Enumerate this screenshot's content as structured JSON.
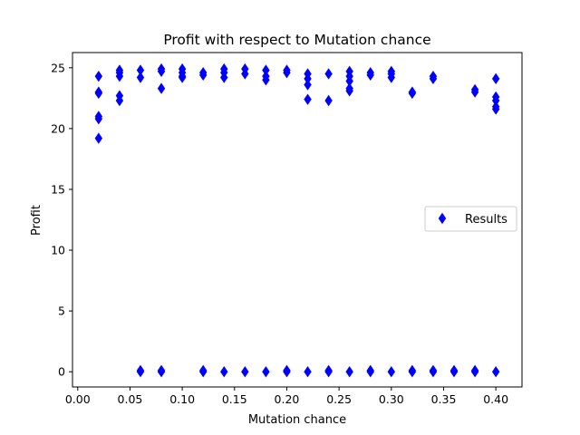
{
  "chart_data": {
    "type": "scatter",
    "title": "Profit with respect to Mutation chance",
    "xlabel": "Mutation chance",
    "ylabel": "Profit",
    "xlim": [
      -0.005,
      0.425
    ],
    "ylim": [
      -1.25,
      26.25
    ],
    "xticks": [
      "0.00",
      "0.05",
      "0.10",
      "0.15",
      "0.20",
      "0.25",
      "0.30",
      "0.35",
      "0.40"
    ],
    "yticks": [
      "0",
      "5",
      "10",
      "15",
      "20",
      "25"
    ],
    "grid": false,
    "legend_position": "center-right",
    "series": [
      {
        "name": "Results",
        "marker": "thin_diamond",
        "color": "#0000ff",
        "points": [
          [
            0.02,
            24.3
          ],
          [
            0.02,
            23.0
          ],
          [
            0.02,
            22.9
          ],
          [
            0.02,
            21.0
          ],
          [
            0.02,
            20.8
          ],
          [
            0.02,
            19.2
          ],
          [
            0.04,
            24.8
          ],
          [
            0.04,
            24.6
          ],
          [
            0.04,
            24.3
          ],
          [
            0.04,
            22.7
          ],
          [
            0.04,
            22.3
          ],
          [
            0.06,
            24.8
          ],
          [
            0.06,
            24.2
          ],
          [
            0.06,
            0.1
          ],
          [
            0.06,
            0.0
          ],
          [
            0.08,
            24.9
          ],
          [
            0.08,
            24.7
          ],
          [
            0.08,
            23.3
          ],
          [
            0.08,
            0.1
          ],
          [
            0.08,
            0.0
          ],
          [
            0.1,
            24.9
          ],
          [
            0.1,
            24.6
          ],
          [
            0.1,
            24.3
          ],
          [
            0.1,
            24.2
          ],
          [
            0.12,
            24.6
          ],
          [
            0.12,
            24.4
          ],
          [
            0.12,
            0.1
          ],
          [
            0.12,
            0.0
          ],
          [
            0.14,
            24.9
          ],
          [
            0.14,
            24.6
          ],
          [
            0.14,
            24.2
          ],
          [
            0.14,
            0.0
          ],
          [
            0.16,
            24.9
          ],
          [
            0.16,
            24.5
          ],
          [
            0.16,
            0.0
          ],
          [
            0.18,
            24.8
          ],
          [
            0.18,
            24.3
          ],
          [
            0.18,
            24.0
          ],
          [
            0.18,
            0.0
          ],
          [
            0.2,
            24.8
          ],
          [
            0.2,
            24.6
          ],
          [
            0.2,
            0.1
          ],
          [
            0.2,
            0.0
          ],
          [
            0.22,
            24.5
          ],
          [
            0.22,
            24.1
          ],
          [
            0.22,
            23.6
          ],
          [
            0.22,
            22.4
          ],
          [
            0.22,
            0.0
          ],
          [
            0.24,
            24.5
          ],
          [
            0.24,
            22.3
          ],
          [
            0.24,
            0.1
          ],
          [
            0.24,
            0.0
          ],
          [
            0.26,
            24.7
          ],
          [
            0.26,
            24.3
          ],
          [
            0.26,
            23.9
          ],
          [
            0.26,
            23.3
          ],
          [
            0.26,
            23.1
          ],
          [
            0.26,
            0.0
          ],
          [
            0.28,
            24.6
          ],
          [
            0.28,
            24.4
          ],
          [
            0.28,
            0.1
          ],
          [
            0.28,
            0.0
          ],
          [
            0.3,
            24.7
          ],
          [
            0.3,
            24.5
          ],
          [
            0.3,
            24.2
          ],
          [
            0.3,
            0.0
          ],
          [
            0.32,
            23.0
          ],
          [
            0.32,
            22.9
          ],
          [
            0.32,
            0.1
          ],
          [
            0.32,
            0.0
          ],
          [
            0.34,
            24.3
          ],
          [
            0.34,
            24.1
          ],
          [
            0.34,
            0.1
          ],
          [
            0.34,
            0.0
          ],
          [
            0.36,
            0.1
          ],
          [
            0.36,
            0.0
          ],
          [
            0.38,
            23.2
          ],
          [
            0.38,
            23.0
          ],
          [
            0.38,
            0.1
          ],
          [
            0.38,
            0.0
          ],
          [
            0.4,
            24.1
          ],
          [
            0.4,
            22.6
          ],
          [
            0.4,
            22.3
          ],
          [
            0.4,
            21.8
          ],
          [
            0.4,
            21.6
          ],
          [
            0.4,
            0.0
          ]
        ]
      }
    ]
  }
}
